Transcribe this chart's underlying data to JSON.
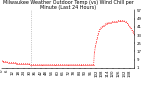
{
  "title": "Milwaukee Weather Outdoor Temp (vs) Wind Chill per Minute (Last 24 Hours)",
  "background_color": "#ffffff",
  "plot_bg_color": "#ffffff",
  "line_color": "#ff0000",
  "ylim": [
    1,
    57
  ],
  "yticks": [
    1,
    9,
    17,
    25,
    33,
    41,
    49,
    57
  ],
  "ytick_labels": [
    "1",
    "9",
    "17",
    "25",
    "33",
    "41",
    "49",
    "57"
  ],
  "vline_pos": 32,
  "vline_color": "#999999",
  "x_data": [
    0,
    1,
    2,
    3,
    4,
    5,
    6,
    7,
    8,
    9,
    10,
    11,
    12,
    13,
    14,
    15,
    16,
    17,
    18,
    19,
    20,
    21,
    22,
    23,
    24,
    25,
    26,
    27,
    28,
    29,
    30,
    31,
    32,
    33,
    34,
    35,
    36,
    37,
    38,
    39,
    40,
    41,
    42,
    43,
    44,
    45,
    46,
    47,
    48,
    49,
    50,
    51,
    52,
    53,
    54,
    55,
    56,
    57,
    58,
    59,
    60,
    61,
    62,
    63,
    64,
    65,
    66,
    67,
    68,
    69,
    70,
    71,
    72,
    73,
    74,
    75,
    76,
    77,
    78,
    79,
    80,
    81,
    82,
    83,
    84,
    85,
    86,
    87,
    88,
    89,
    90,
    91,
    92,
    93,
    94,
    95,
    96,
    97,
    98,
    99,
    100,
    101,
    102,
    103,
    104,
    105,
    106,
    107,
    108,
    109,
    110,
    111,
    112,
    113,
    114,
    115,
    116,
    117,
    118,
    119,
    120,
    121,
    122,
    123,
    124,
    125,
    126,
    127,
    128,
    129,
    130,
    131,
    132,
    133,
    134,
    135,
    136,
    137,
    138,
    139,
    140,
    141,
    142,
    143
  ],
  "y_data": [
    8,
    8,
    7,
    7,
    7,
    7,
    7,
    6,
    6,
    6,
    6,
    6,
    6,
    6,
    6,
    6,
    5,
    5,
    5,
    5,
    5,
    5,
    5,
    5,
    5,
    5,
    5,
    5,
    5,
    5,
    5,
    4,
    4,
    4,
    4,
    4,
    4,
    4,
    4,
    4,
    4,
    4,
    4,
    4,
    4,
    4,
    4,
    4,
    4,
    4,
    4,
    4,
    4,
    4,
    4,
    4,
    4,
    4,
    4,
    4,
    4,
    4,
    4,
    4,
    4,
    4,
    4,
    4,
    4,
    4,
    4,
    4,
    4,
    4,
    4,
    4,
    4,
    4,
    4,
    4,
    4,
    4,
    4,
    4,
    4,
    4,
    4,
    4,
    4,
    4,
    4,
    4,
    4,
    4,
    4,
    4,
    4,
    4,
    4,
    4,
    16,
    22,
    26,
    30,
    34,
    37,
    39,
    40,
    41,
    42,
    42,
    43,
    44,
    44,
    45,
    45,
    45,
    45,
    45,
    46,
    46,
    46,
    46,
    46,
    46,
    47,
    47,
    47,
    47,
    47,
    47,
    47,
    47,
    46,
    46,
    45,
    44,
    42,
    41,
    40,
    38,
    37,
    35,
    34
  ],
  "title_fontsize": 3.5,
  "tick_fontsize": 2.8,
  "figsize": [
    1.6,
    0.87
  ],
  "dpi": 100
}
